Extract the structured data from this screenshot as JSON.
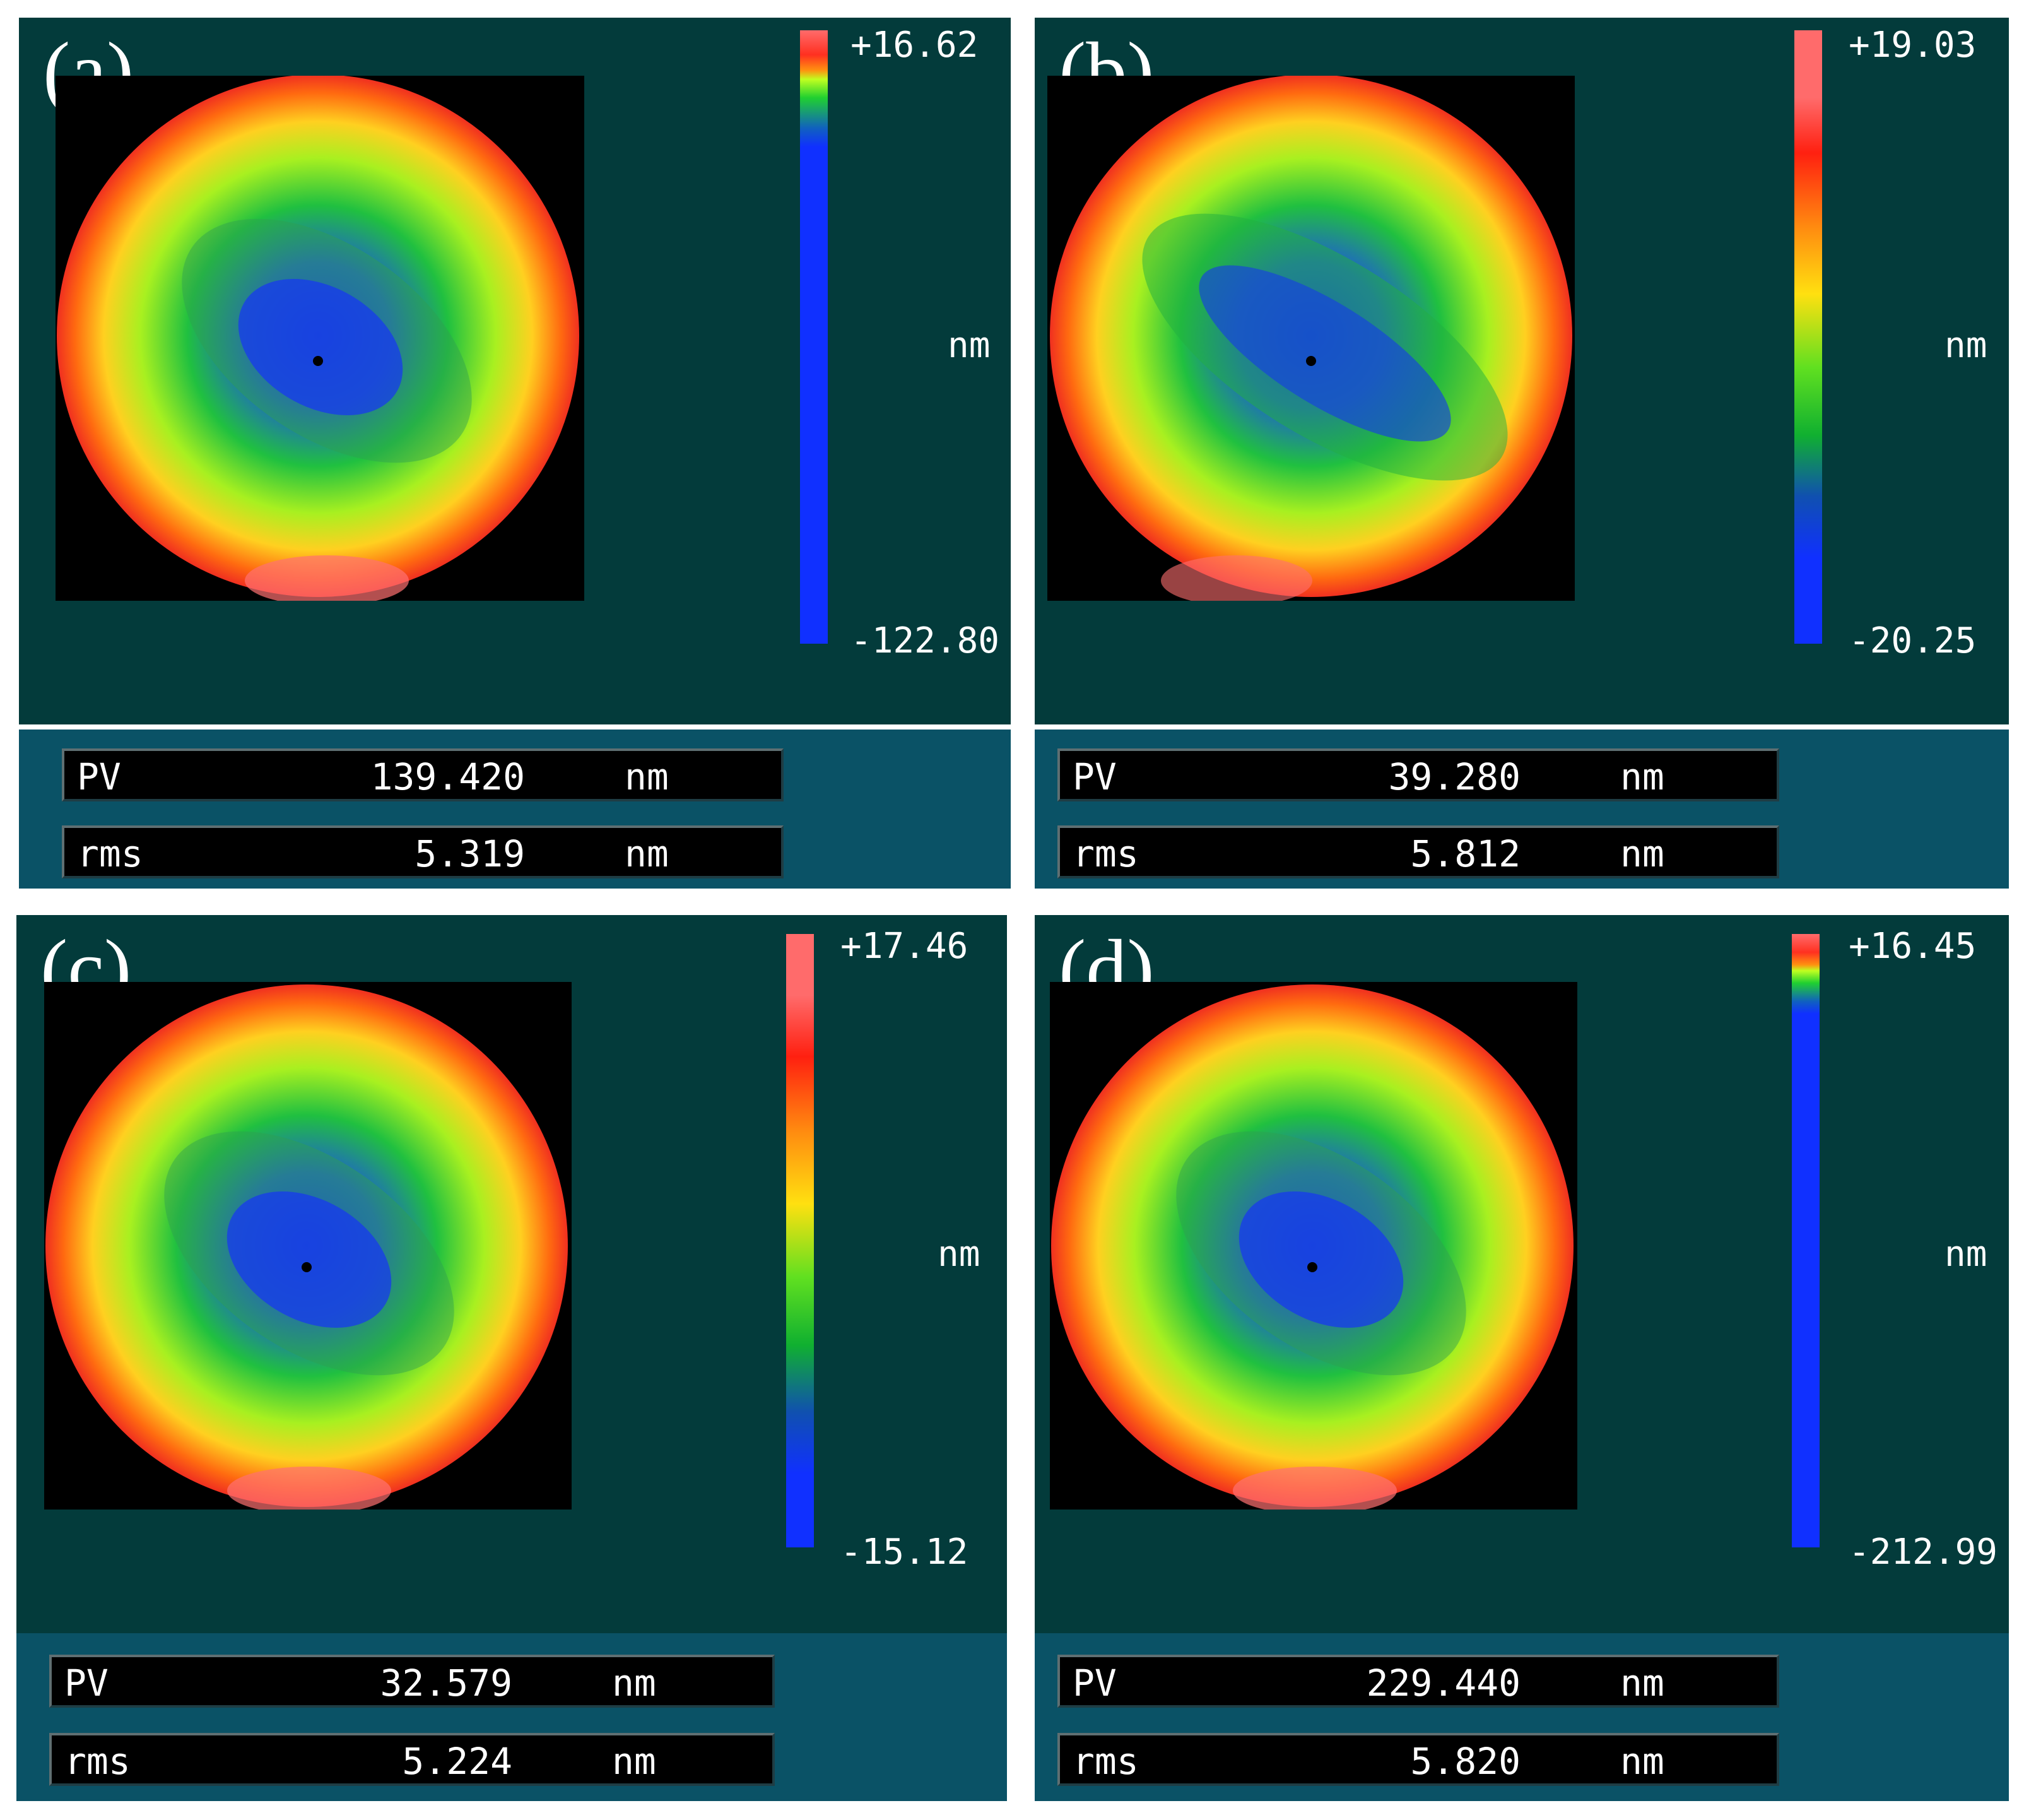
{
  "colors": {
    "panel_top_bg": "#033b3b",
    "panel_bottom_bg": "#0a5266",
    "map_bg": "#000000",
    "text": "#ffffff"
  },
  "panels": [
    {
      "label": "(a)",
      "colorbar": {
        "max": "+16.62",
        "min": "-122.80",
        "unit": "nm",
        "style": "compressed"
      },
      "pv": {
        "name": "PV",
        "value": "139.420",
        "unit": "nm"
      },
      "rms": {
        "name": "rms",
        "value": "5.319",
        "unit": "nm"
      }
    },
    {
      "label": "(b)",
      "colorbar": {
        "max": "+19.03",
        "min": "-20.25",
        "unit": "nm",
        "style": "full"
      },
      "pv": {
        "name": "PV",
        "value": "39.280",
        "unit": "nm"
      },
      "rms": {
        "name": "rms",
        "value": "5.812",
        "unit": "nm"
      }
    },
    {
      "label": "(c)",
      "colorbar": {
        "max": "+17.46",
        "min": "-15.12",
        "unit": "nm",
        "style": "full"
      },
      "pv": {
        "name": "PV",
        "value": "32.579",
        "unit": "nm"
      },
      "rms": {
        "name": "rms",
        "value": "5.224",
        "unit": "nm"
      }
    },
    {
      "label": "(d)",
      "colorbar": {
        "max": "+16.45",
        "min": "-212.99",
        "unit": "nm",
        "style": "compressed"
      },
      "pv": {
        "name": "PV",
        "value": "229.440",
        "unit": "nm"
      },
      "rms": {
        "name": "rms",
        "value": "5.820",
        "unit": "nm"
      }
    }
  ]
}
